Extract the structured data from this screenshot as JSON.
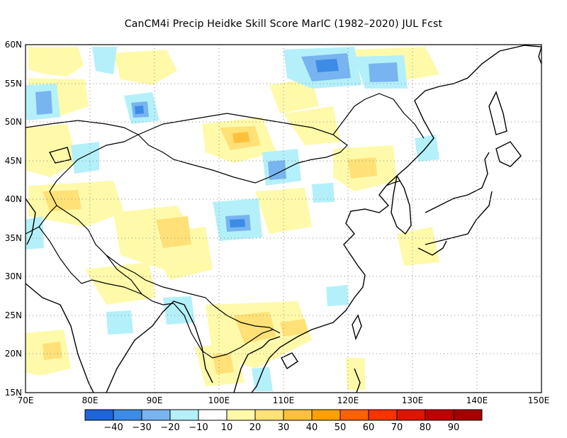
{
  "title": "CanCM4i Precip Heidke Skill Score MarIC (1982–2020) JUL Fcst",
  "map": {
    "lat_labels": [
      "60N",
      "55N",
      "50N",
      "45N",
      "40N",
      "35N",
      "30N",
      "25N",
      "20N",
      "15N"
    ],
    "lon_labels": [
      "70E",
      "80E",
      "90E",
      "100E",
      "110E",
      "120E",
      "130E",
      "140E",
      "150E"
    ],
    "lon_range": [
      70,
      150
    ],
    "lat_range": [
      15,
      60
    ],
    "grid": "dotted"
  },
  "colorbar": {
    "colors": [
      "#1e64dc",
      "#3c8ce6",
      "#78b4f0",
      "#b4f0fa",
      "#ffffff",
      "#fffaaa",
      "#ffe178",
      "#ffc03c",
      "#ffa000",
      "#ff6000",
      "#ff3200",
      "#e11400",
      "#c00000",
      "#a50000"
    ],
    "labels": [
      "−40",
      "−30",
      "−20",
      "−10",
      "10",
      "20",
      "30",
      "40",
      "50",
      "60",
      "70",
      "80",
      "90"
    ]
  }
}
